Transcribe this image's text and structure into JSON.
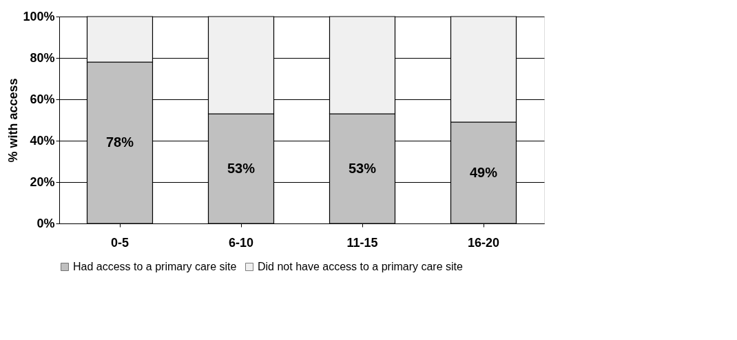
{
  "chart_data": {
    "type": "bar",
    "stacked": true,
    "ylabel": "% with access",
    "categories": [
      "0-5",
      "6-10",
      "11-15",
      "16-20"
    ],
    "series": [
      {
        "name": "Had access to a primary care site",
        "color": "#c0c0c0",
        "values": [
          78,
          53,
          53,
          49
        ],
        "value_labels": [
          "78%",
          "53%",
          "53%",
          "49%"
        ]
      },
      {
        "name": "Did not have access to a primary care site",
        "color": "#f0f0f0",
        "values": [
          22,
          47,
          47,
          51
        ]
      }
    ],
    "ylim": [
      0,
      100
    ],
    "yticks": [
      {
        "value": 0,
        "label": "0%"
      },
      {
        "value": 20,
        "label": "20%"
      },
      {
        "value": 40,
        "label": "40%"
      },
      {
        "value": 60,
        "label": "60%"
      },
      {
        "value": 80,
        "label": "80%"
      },
      {
        "value": 100,
        "label": "100%"
      }
    ],
    "grid": "y",
    "legend": "bottom"
  }
}
